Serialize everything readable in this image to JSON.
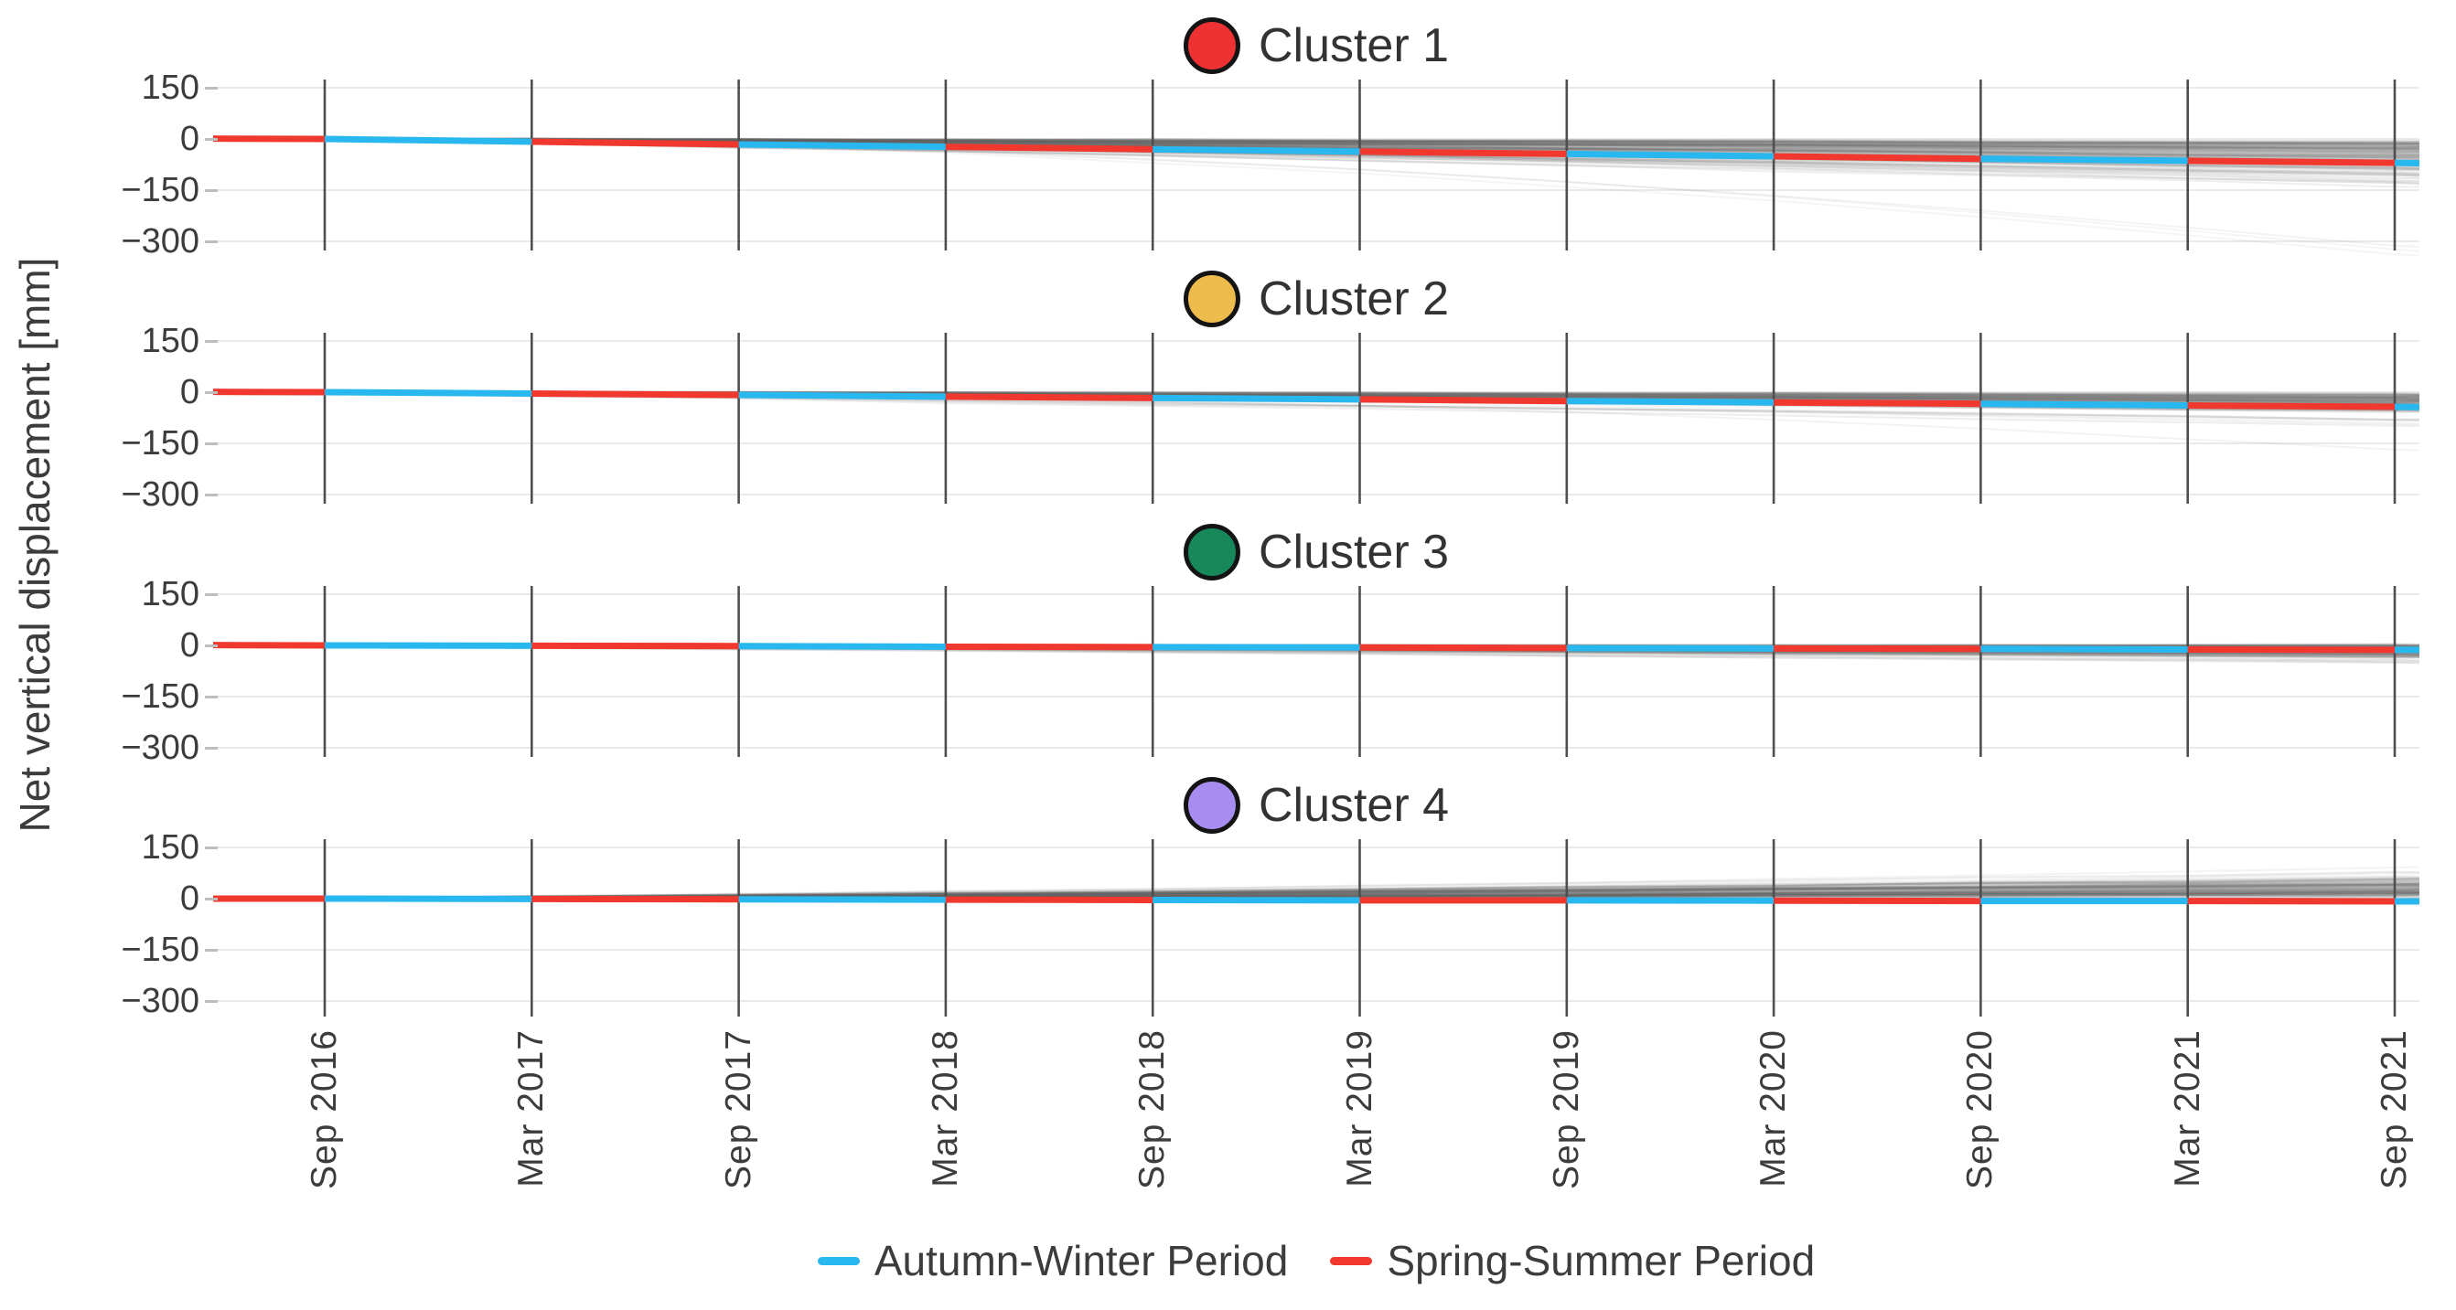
{
  "figure": {
    "background": "#ffffff",
    "text_color": "#3c3c3c"
  },
  "chart_data": {
    "type": "line",
    "ylabel": "Net vertical displacement [mm]",
    "x_tick_labels": [
      "Sep 2016",
      "Mar 2017",
      "Sep 2017",
      "Mar 2018",
      "Sep 2018",
      "Mar 2019",
      "Sep 2019",
      "Mar 2020",
      "Sep 2020",
      "Mar 2021",
      "Sep 2021"
    ],
    "y_tick_labels": [
      "150",
      "0",
      "−150",
      "−300"
    ],
    "y_ticks_mm": [
      150,
      0,
      -150,
      -300
    ],
    "ylim_mm": [
      -362,
      206
    ],
    "grid": {
      "vertical_color": "#4e4e4e",
      "horizontal_color": "#e9e9e9"
    },
    "ensemble_line_color": "#646464",
    "legend": [
      {
        "label": "Autumn-Winter Period",
        "color": "#29b7f0",
        "covers": "Sep-Mar segments"
      },
      {
        "label": "Spring-Summer Period",
        "color": "#f0382e",
        "covers": "Mar-Sep segments"
      }
    ],
    "median_note": "median_mm holds 13 values: plot left edge, the 11 Sep/Mar ticks, plot right edge",
    "panels": [
      {
        "label": "Cluster 1",
        "marker_color": "#ee3132",
        "median_mm": [
          1,
          0,
          -8,
          -16,
          -23,
          -30,
          -37,
          -44,
          -51,
          -58,
          -64,
          -70,
          -71
        ],
        "band_at_end_mm": [
          -160,
          -5
        ],
        "ensemble": {
          "count": 130,
          "direction": -1,
          "offset": 8,
          "spread": 55,
          "clamp": [
            -300,
            12
          ],
          "divers": 3
        }
      },
      {
        "label": "Cluster 2",
        "marker_color": "#eebb4d",
        "median_mm": [
          1,
          0,
          -4,
          -8,
          -13,
          -17,
          -21,
          -26,
          -30,
          -34,
          -39,
          -43,
          -44
        ],
        "band_at_end_mm": [
          -95,
          -5
        ],
        "ensemble": {
          "count": 105,
          "direction": -1,
          "offset": 6,
          "spread": 30,
          "clamp": [
            -160,
            10
          ],
          "divers": 1
        }
      },
      {
        "label": "Cluster 3",
        "marker_color": "#17885a",
        "median_mm": [
          1,
          0,
          -1,
          -2,
          -4,
          -5,
          -6,
          -8,
          -9,
          -10,
          -12,
          -13,
          -13
        ],
        "band_at_end_mm": [
          -55,
          10
        ],
        "ensemble": {
          "count": 105,
          "direction": -1,
          "offset": 2,
          "spread": 20,
          "clamp": [
            -85,
            15
          ],
          "divers": 0
        }
      },
      {
        "label": "Cluster 4",
        "marker_color": "#a78df0",
        "median_mm": [
          0,
          0,
          -1,
          -2,
          -3,
          -4,
          -5,
          -5,
          -6,
          -7,
          -7,
          -8,
          -8
        ],
        "band_at_end_mm": [
          -20,
          80
        ],
        "ensemble": {
          "count": 110,
          "direction": 1,
          "offset": 6,
          "spread": 32,
          "clamp": [
            -25,
            112
          ],
          "divers": 0
        }
      }
    ]
  }
}
